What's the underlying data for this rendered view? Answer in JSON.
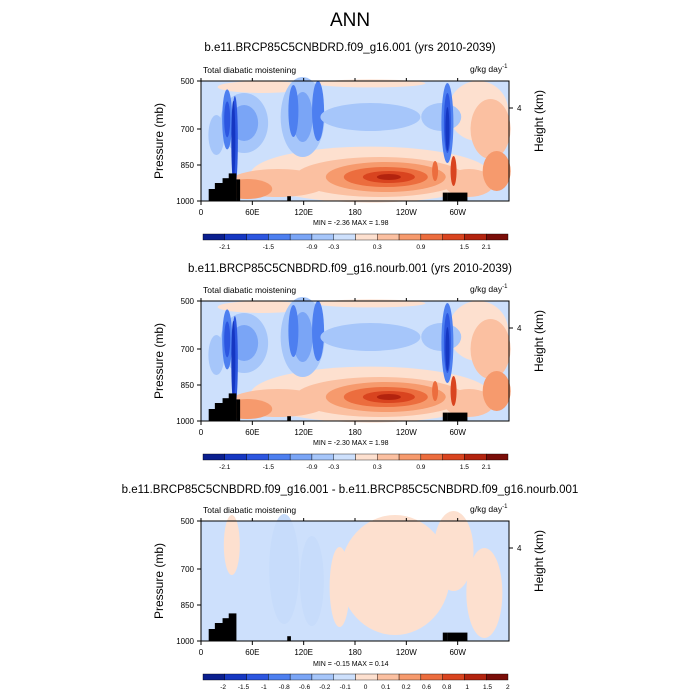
{
  "figure_title": "ANN",
  "panels": [
    {
      "title": "b.e11.BRCP85C5CNBDRD.f09_g16.001 (yrs 2010-2039)",
      "left_label": "Total diabatic moistening",
      "units": "g/kg day",
      "units_exp": "-1",
      "ylabel": "Pressure (mb)",
      "right_label": "Height (km)",
      "right_tick": "4",
      "yticks": [
        "500",
        "700",
        "850",
        "1000"
      ],
      "xticks": [
        "0",
        "60E",
        "120E",
        "180",
        "120W",
        "60W"
      ],
      "minmax": "MIN = -2.36  MAX = 1.98",
      "colorbar_labels": [
        "-2.1",
        "-1.5",
        "-0.9",
        "-0.3",
        "0.3",
        "0.9",
        "1.5",
        "2.1"
      ]
    },
    {
      "title": "b.e11.BRCP85C5CNBDRD.f09_g16.nourb.001 (yrs 2010-2039)",
      "left_label": "Total diabatic moistening",
      "units": "g/kg day",
      "units_exp": "-1",
      "ylabel": "Pressure (mb)",
      "right_label": "Height (km)",
      "right_tick": "4",
      "yticks": [
        "500",
        "700",
        "850",
        "1000"
      ],
      "xticks": [
        "0",
        "60E",
        "120E",
        "180",
        "120W",
        "60W"
      ],
      "minmax": "MIN = -2.30  MAX = 1.98",
      "colorbar_labels": [
        "-2.1",
        "-1.5",
        "-0.9",
        "-0.3",
        "0.3",
        "0.9",
        "1.5",
        "2.1"
      ]
    },
    {
      "title": "b.e11.BRCP85C5CNBDRD.f09_g16.001 - b.e11.BRCP85C5CNBDRD.f09_g16.nourb.001",
      "left_label": "Total diabatic moistening",
      "units": "g/kg day",
      "units_exp": "-1",
      "ylabel": "Pressure (mb)",
      "right_label": "Height (km)",
      "right_tick": "4",
      "yticks": [
        "500",
        "700",
        "850",
        "1000"
      ],
      "xticks": [
        "0",
        "60E",
        "120E",
        "180",
        "120W",
        "60W"
      ],
      "minmax": "MIN = -0.15  MAX = 0.14",
      "colorbar_labels": [
        "-2",
        "-1.5",
        "-1",
        "-0.8",
        "-0.6",
        "-0.2",
        "-0.1",
        "0",
        "0.1",
        "0.2",
        "0.6",
        "0.8",
        "1",
        "1.5",
        "2"
      ]
    }
  ],
  "chart_data": [
    {
      "type": "heatmap",
      "title": "b.e11.BRCP85C5CNBDRD.f09_g16.001 (yrs 2010-2039)",
      "xlabel": "",
      "ylabel": "Pressure (mb)",
      "xlim": [
        0,
        360
      ],
      "ylim": [
        1000,
        500
      ],
      "x_ticks": [
        "0",
        "60E",
        "120E",
        "180",
        "120W",
        "60W"
      ],
      "y_ticks": [
        500,
        700,
        850,
        1000
      ],
      "value_range": {
        "min": -2.36,
        "max": 1.98
      },
      "units": "g/kg day-1",
      "colors": [
        "#0a1f8f",
        "#1537c2",
        "#2c56e0",
        "#4d7ff0",
        "#7aa5f6",
        "#a6c6fa",
        "#cde0fc",
        "#fde0cf",
        "#fbc0a1",
        "#f69a6d",
        "#ec6d3e",
        "#d9441f",
        "#b3230e",
        "#7a0d08"
      ]
    },
    {
      "type": "heatmap",
      "title": "b.e11.BRCP85C5CNBDRD.f09_g16.nourb.001 (yrs 2010-2039)",
      "xlabel": "",
      "ylabel": "Pressure (mb)",
      "xlim": [
        0,
        360
      ],
      "ylim": [
        1000,
        500
      ],
      "x_ticks": [
        "0",
        "60E",
        "120E",
        "180",
        "120W",
        "60W"
      ],
      "y_ticks": [
        500,
        700,
        850,
        1000
      ],
      "value_range": {
        "min": -2.3,
        "max": 1.98
      },
      "units": "g/kg day-1",
      "colors": [
        "#0a1f8f",
        "#1537c2",
        "#2c56e0",
        "#4d7ff0",
        "#7aa5f6",
        "#a6c6fa",
        "#cde0fc",
        "#fde0cf",
        "#fbc0a1",
        "#f69a6d",
        "#ec6d3e",
        "#d9441f",
        "#b3230e",
        "#7a0d08"
      ]
    },
    {
      "type": "heatmap",
      "title": "b.e11.BRCP85C5CNBDRD.f09_g16.001 - b.e11.BRCP85C5CNBDRD.f09_g16.nourb.001",
      "xlabel": "",
      "ylabel": "Pressure (mb)",
      "xlim": [
        0,
        360
      ],
      "ylim": [
        1000,
        500
      ],
      "x_ticks": [
        "0",
        "60E",
        "120E",
        "180",
        "120W",
        "60W"
      ],
      "y_ticks": [
        500,
        700,
        850,
        1000
      ],
      "value_range": {
        "min": -0.15,
        "max": 0.14
      },
      "units": "g/kg day-1",
      "colors": [
        "#0a1f8f",
        "#1537c2",
        "#2c56e0",
        "#4d7ff0",
        "#7aa5f6",
        "#a6c6fa",
        "#cde0fc",
        "#fde0cf",
        "#fbc0a1",
        "#f69a6d",
        "#ec6d3e",
        "#d9441f",
        "#b3230e",
        "#7a0d08"
      ]
    }
  ],
  "palette": [
    "#0a1f8f",
    "#1537c2",
    "#2c56e0",
    "#4d7ff0",
    "#7aa5f6",
    "#a6c6fa",
    "#cde0fc",
    "#fde0cf",
    "#fbc0a1",
    "#f69a6d",
    "#ec6d3e",
    "#d9441f",
    "#b3230e",
    "#7a0d08"
  ]
}
